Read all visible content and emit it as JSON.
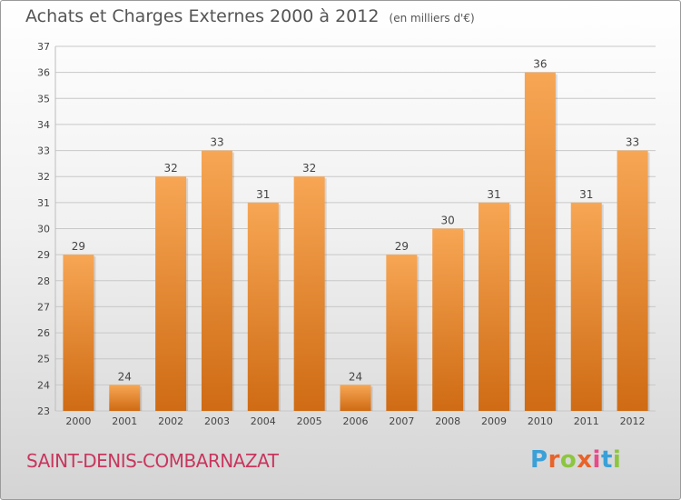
{
  "title": "Achats et Charges Externes 2000 à 2012",
  "subtitle": "(en milliers d'€)",
  "location": "SAINT-DENIS-COMBARNAZAT",
  "brand": {
    "letters": [
      "P",
      "r",
      "o",
      "x",
      "i",
      "t",
      "i"
    ],
    "colors": [
      "#3aa0d8",
      "#e8632a",
      "#8cc63f",
      "#e8632a",
      "#e84a8a",
      "#3aa0d8",
      "#8cc63f"
    ]
  },
  "colors": {
    "bar_top": "#f7a654",
    "bar_bottom": "#cf6b14",
    "grid": "#c8c8c8",
    "axis_text": "#444444"
  },
  "chart_data": {
    "type": "bar",
    "title": "Achats et Charges Externes 2000 à 2012",
    "subtitle": "(en milliers d'€)",
    "categories": [
      "2000",
      "2001",
      "2002",
      "2003",
      "2004",
      "2005",
      "2006",
      "2007",
      "2008",
      "2009",
      "2010",
      "2011",
      "2012"
    ],
    "values": [
      29,
      24,
      32,
      33,
      31,
      32,
      24,
      29,
      30,
      31,
      36,
      31,
      33
    ],
    "ylim": [
      23,
      37
    ],
    "yticks": [
      23,
      24,
      25,
      26,
      27,
      28,
      29,
      30,
      31,
      32,
      33,
      34,
      35,
      36,
      37
    ],
    "grid": true,
    "legend": "none"
  }
}
